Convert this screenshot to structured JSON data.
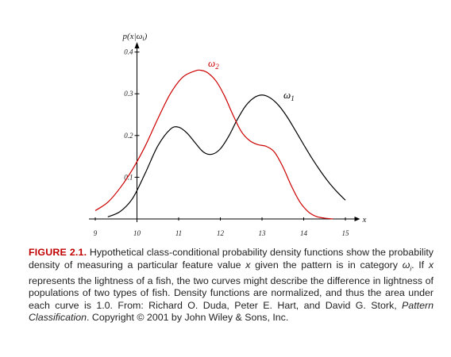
{
  "chart_data": {
    "type": "line",
    "title": "",
    "xlabel": "x",
    "ylabel": "p(x|ω_i)",
    "xlim": [
      9,
      15.2
    ],
    "ylim": [
      0,
      0.41
    ],
    "x_ticks": [
      9,
      10,
      11,
      12,
      13,
      14,
      15
    ],
    "y_ticks": [
      0.1,
      0.2,
      0.3,
      0.4
    ],
    "x_tick_labels": [
      "9",
      "10",
      "11",
      "12",
      "13",
      "14",
      "15"
    ],
    "y_tick_labels": [
      "0.1",
      "0.2",
      "0.3",
      "0.4"
    ],
    "series": [
      {
        "name": "ω1",
        "label_main": "ω",
        "label_sub": "1",
        "color": "#000000",
        "x": [
          9.3,
          9.6,
          9.9,
          10.2,
          10.5,
          10.8,
          11.0,
          11.2,
          11.4,
          11.6,
          11.8,
          12.0,
          12.2,
          12.4,
          12.6,
          12.8,
          13.0,
          13.2,
          13.4,
          13.6,
          13.8,
          14.0,
          14.2,
          14.4,
          14.6,
          14.8,
          15.0
        ],
        "y": [
          0.005,
          0.018,
          0.05,
          0.11,
          0.175,
          0.215,
          0.22,
          0.206,
          0.182,
          0.16,
          0.155,
          0.168,
          0.198,
          0.237,
          0.27,
          0.29,
          0.297,
          0.29,
          0.272,
          0.245,
          0.212,
          0.178,
          0.145,
          0.115,
          0.088,
          0.065,
          0.045
        ]
      },
      {
        "name": "ω2",
        "label_main": "ω",
        "label_sub": "2",
        "color": "#cc0000",
        "x": [
          9.0,
          9.3,
          9.6,
          9.9,
          10.2,
          10.5,
          10.8,
          11.1,
          11.4,
          11.55,
          11.7,
          11.9,
          12.1,
          12.3,
          12.5,
          12.7,
          12.9,
          13.1,
          13.3,
          13.5,
          13.7,
          13.9,
          14.1,
          14.3,
          14.5,
          14.7
        ],
        "y": [
          0.02,
          0.04,
          0.075,
          0.12,
          0.175,
          0.24,
          0.3,
          0.34,
          0.355,
          0.356,
          0.35,
          0.33,
          0.295,
          0.25,
          0.21,
          0.188,
          0.178,
          0.174,
          0.16,
          0.125,
          0.08,
          0.042,
          0.018,
          0.006,
          0.002,
          0.0
        ]
      }
    ]
  },
  "caption": {
    "figure_label": "FIGURE 2.1.",
    "p1": " Hypothetical class-conditional probability density functions show the probability density of measuring a particular feature value ",
    "x1": "x",
    "p2": " given the pattern is in category ",
    "omega": "ω",
    "sub_i": "i",
    "p3": ". If ",
    "x2": "x",
    "p4": " represents the lightness of a fish, the two curves might describe the difference in lightness of populations of two types of fish. Density functions are normalized, and thus the area under each curve is 1.0. From: Richard O. Duda, Peter E. Hart, and David G. Stork, ",
    "book": "Pattern Classification",
    "p5": ". Copyright © 2001 by John Wiley & Sons, Inc."
  }
}
